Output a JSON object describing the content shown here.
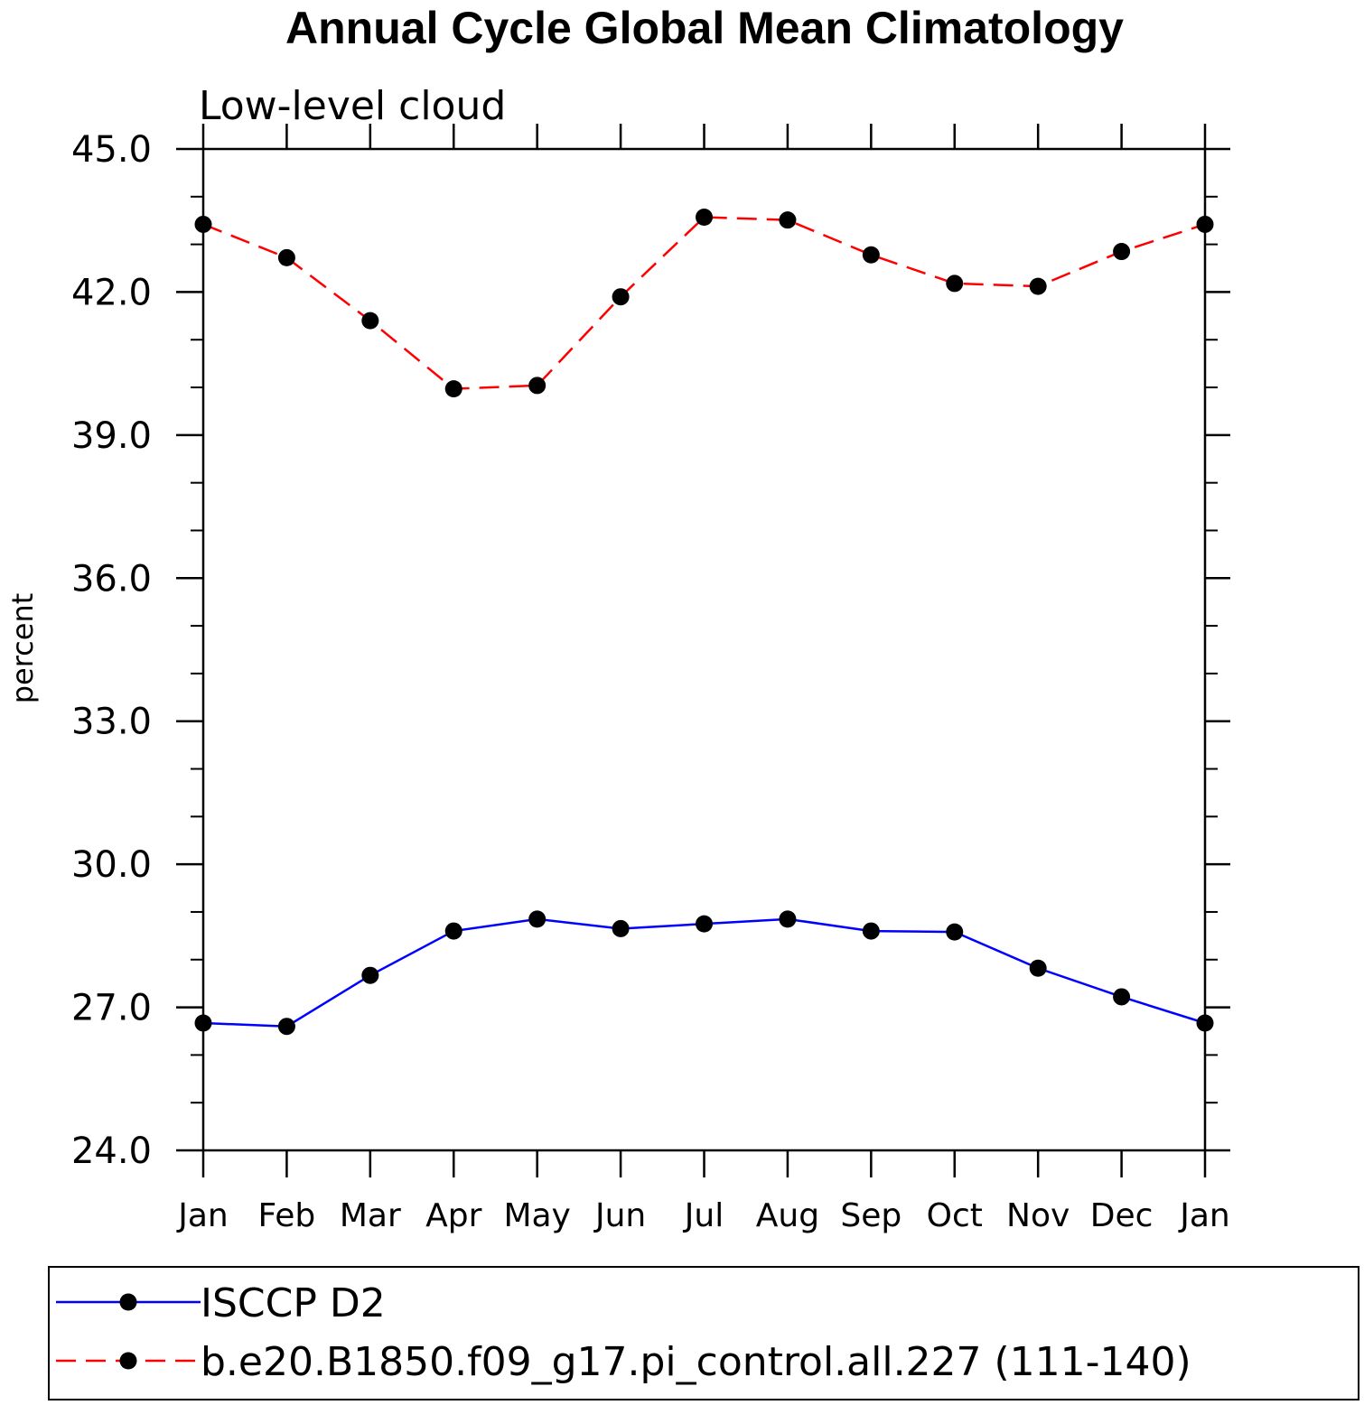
{
  "chart_data": {
    "type": "line",
    "title": "Annual Cycle Global Mean Climatology",
    "subtitle": "Low-level cloud",
    "ylabel": "percent",
    "xlabel": "",
    "ylim": [
      24.0,
      45.0
    ],
    "yticks": [
      "45.0",
      "42.0",
      "39.0",
      "36.0",
      "33.0",
      "30.0",
      "27.0",
      "24.0"
    ],
    "categories": [
      "Jan",
      "Feb",
      "Mar",
      "Apr",
      "May",
      "Jun",
      "Jul",
      "Aug",
      "Sep",
      "Oct",
      "Nov",
      "Dec",
      "Jan"
    ],
    "series": [
      {
        "name": "ISCCP D2",
        "color": "#0000ff",
        "dash": "solid",
        "values": [
          26.67,
          26.6,
          27.67,
          28.6,
          28.85,
          28.65,
          28.75,
          28.85,
          28.6,
          28.58,
          27.82,
          27.22,
          26.67
        ]
      },
      {
        "name": "b.e20.B1850.f09_g17.pi_control.all.227 (111-140)",
        "color": "#ff0000",
        "dash": "dashed",
        "values": [
          43.42,
          42.72,
          41.4,
          39.97,
          40.04,
          41.9,
          43.57,
          43.51,
          42.78,
          42.18,
          42.12,
          42.85,
          43.42
        ]
      }
    ],
    "marker": "filled-circle",
    "grid": false,
    "legend_position": "bottom"
  }
}
